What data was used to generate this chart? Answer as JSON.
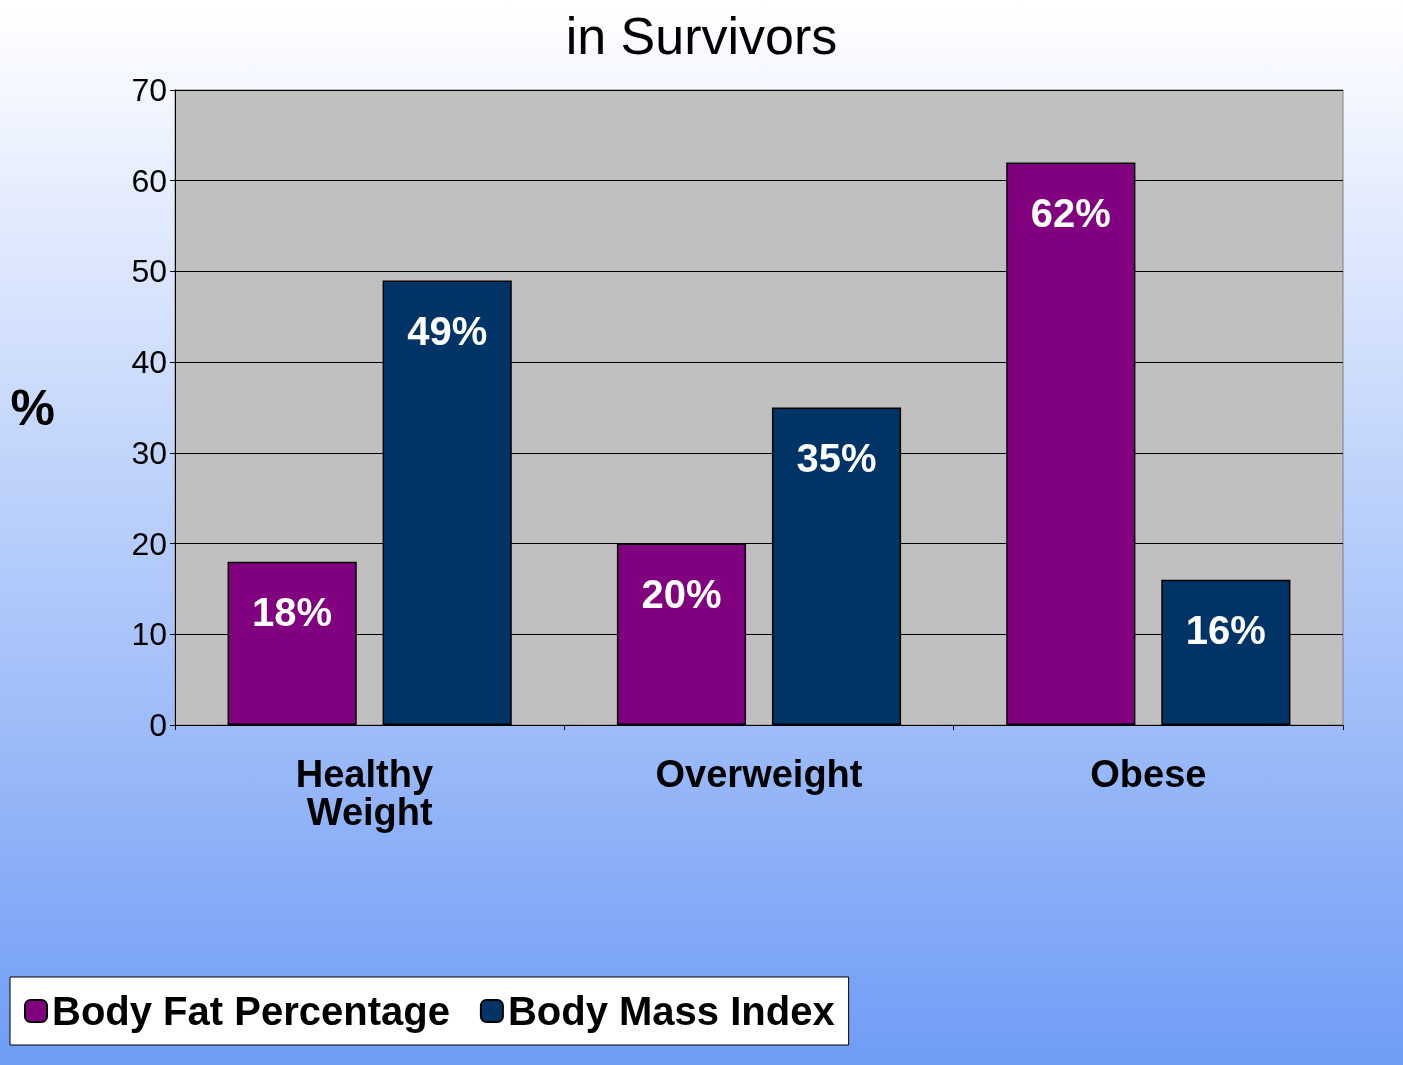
{
  "chart_data": {
    "type": "bar",
    "title": "in Survivors",
    "ylabel": "%",
    "categories": [
      "Healthy Weight",
      "Overweight",
      "Obese"
    ],
    "series": [
      {
        "name": "Body Fat Percentage",
        "color": "#800080",
        "values": [
          18,
          20,
          62
        ],
        "value_labels": [
          "18%",
          "20%",
          "62%"
        ]
      },
      {
        "name": "Body Mass Index",
        "color": "#003366",
        "values": [
          49,
          35,
          16
        ],
        "value_labels": [
          "49%",
          "35%",
          "16%"
        ]
      }
    ],
    "ylim": [
      0,
      70
    ],
    "yticks": [
      0,
      10,
      20,
      30,
      40,
      50,
      60,
      70
    ],
    "grid": "y",
    "legend": "bottom left"
  }
}
